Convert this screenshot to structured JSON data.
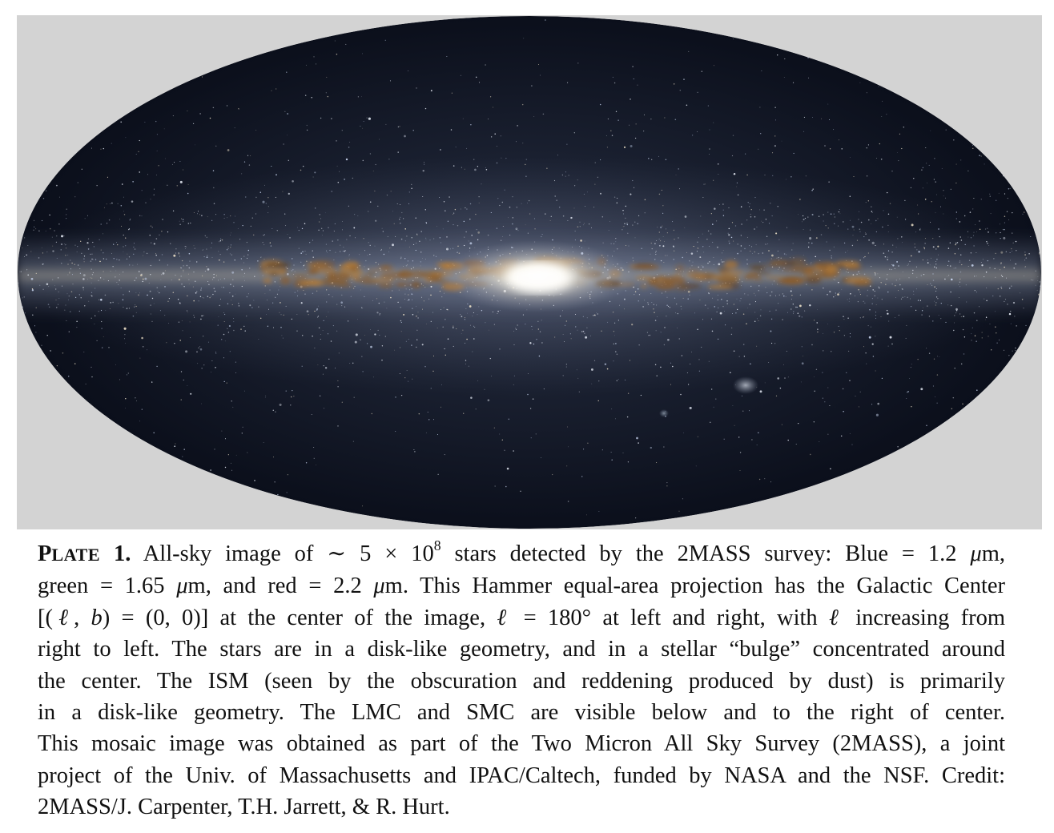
{
  "figure": {
    "label": "Hammer equal-area all-sky infrared image of the Milky Way"
  },
  "caption": {
    "plate_label_first": "P",
    "plate_label_rest": "LATE",
    "plate_number": "1.",
    "lines": [
      {
        "a": "All-sky image of ",
        "approx": "∼",
        "num": "5 × 10",
        "exp": "8",
        "b": " stars detected by the 2MASS survey: Blue = 1.2 ",
        "mu": "μ",
        "c": "m,"
      },
      {
        "a": "green = 1.65 ",
        "mu1": "μ",
        "b": "m, and red = 2.2 ",
        "mu2": "μ",
        "c": "m. This Hammer equal-area projection has the Galactic Center"
      },
      {
        "a": "[(",
        "l": "ℓ",
        "b": ", ",
        "bb": "b",
        "c": ") = (0, 0)] at the center of the image, ",
        "l2": "ℓ",
        "d": " = 180° at left and right, with ",
        "l3": "ℓ",
        "e": " increasing from"
      },
      {
        "text": "right to left. The stars are in a disk-like geometry, and in a stellar “bulge” concentrated around"
      },
      {
        "text": "the center. The ISM (seen by the obscuration and reddening produced by dust) is primarily"
      },
      {
        "text": "in a disk-like geometry. The LMC and SMC are visible below and to the right of center."
      },
      {
        "text": "This mosaic image was obtained as part of the Two Micron All Sky Survey (2MASS), a joint"
      },
      {
        "text": "project of the Univ. of Massachusetts and IPAC/Caltech, funded by NASA and the NSF. Credit:"
      },
      {
        "text": "2MASS/J. Carpenter, T.H. Jarrett, & R. Hurt."
      }
    ]
  },
  "colors": {
    "panel_background": "#d3d3d3",
    "sky_dark": "#0d1120",
    "sky_mid": "#1c2334",
    "bulge_core": "#fffdf4",
    "dust_lane": "#8a5a28",
    "text": "#111111"
  }
}
